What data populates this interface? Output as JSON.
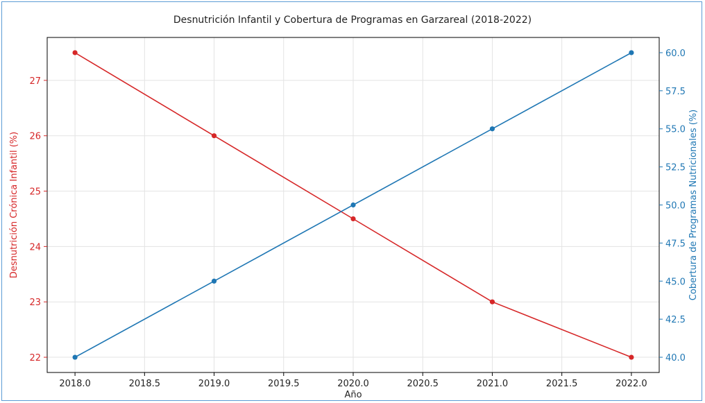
{
  "chart_data": {
    "type": "line",
    "title": "Desnutrición Infantil y Cobertura de Programas en Garzareal (2018-2022)",
    "xlabel": "Año",
    "ylabel_left": "Desnutrición Crónica Infantil (%)",
    "ylabel_right": "Cobertura de Programas Nutricionales (%)",
    "x": [
      2018,
      2019,
      2020,
      2021,
      2022
    ],
    "x_ticks": [
      "2018.0",
      "2018.5",
      "2019.0",
      "2019.5",
      "2020.0",
      "2020.5",
      "2021.0",
      "2021.5",
      "2022.0"
    ],
    "x_tick_values": [
      2018.0,
      2018.5,
      2019.0,
      2019.5,
      2020.0,
      2020.5,
      2021.0,
      2021.5,
      2022.0
    ],
    "xlim": [
      2017.8,
      2022.2
    ],
    "y_left_ticks": [
      "22",
      "23",
      "24",
      "25",
      "26",
      "27"
    ],
    "y_left_tick_values": [
      22,
      23,
      24,
      25,
      26,
      27
    ],
    "ylim_left": [
      21.725,
      27.775
    ],
    "y_right_ticks": [
      "40.0",
      "42.5",
      "45.0",
      "47.5",
      "50.0",
      "52.5",
      "55.0",
      "57.5",
      "60.0"
    ],
    "y_right_tick_values": [
      40.0,
      42.5,
      45.0,
      47.5,
      50.0,
      52.5,
      55.0,
      57.5,
      60.0
    ],
    "ylim_right": [
      39.0,
      61.0
    ],
    "grid": true,
    "series": [
      {
        "axis": "left",
        "color": "#d62728",
        "values": [
          27.5,
          26.0,
          24.5,
          23.0,
          22.0
        ]
      },
      {
        "axis": "right",
        "color": "#1f77b4",
        "values": [
          40.0,
          45.0,
          50.0,
          55.0,
          60.0
        ]
      }
    ]
  }
}
